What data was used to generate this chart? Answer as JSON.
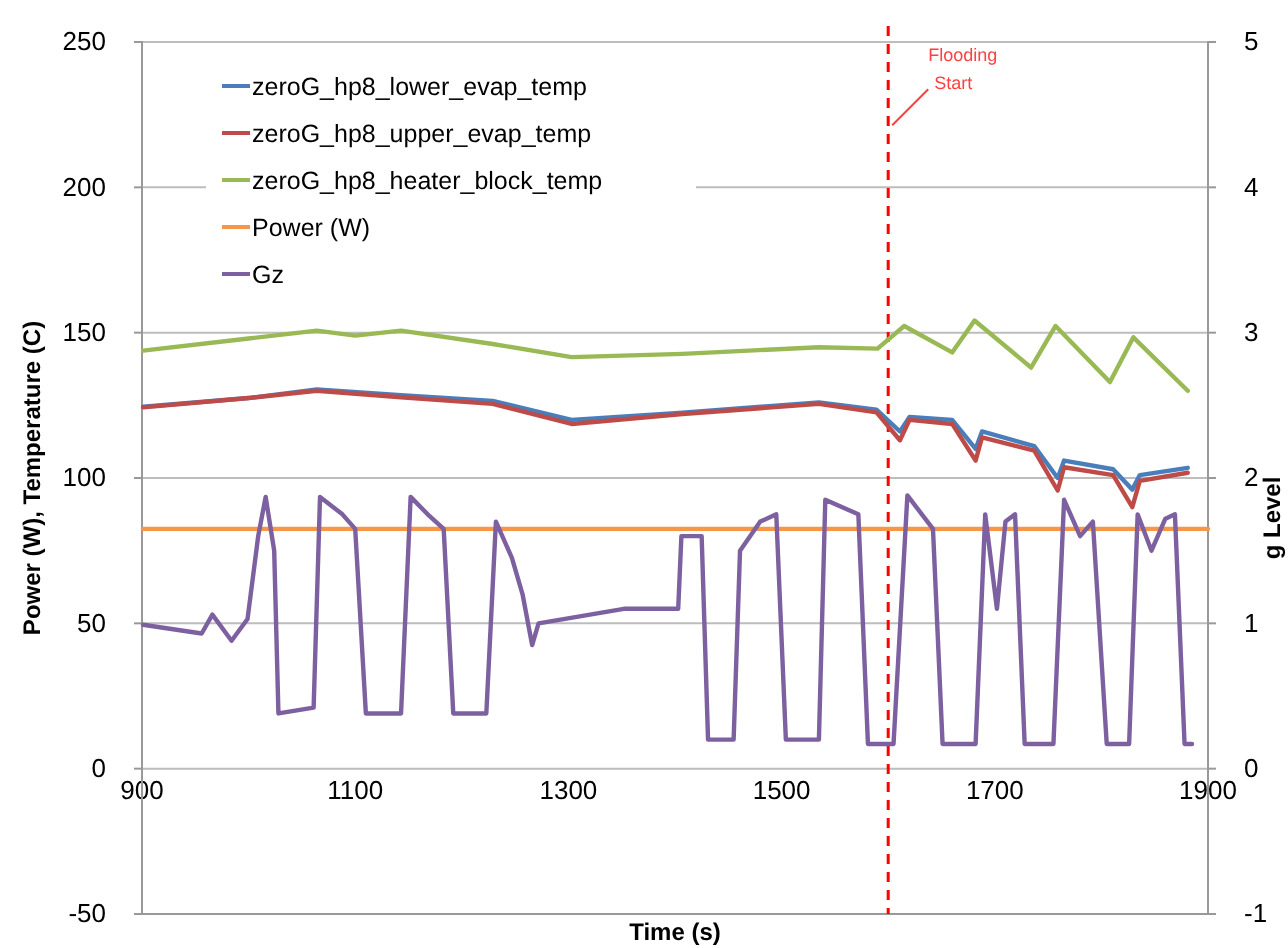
{
  "chart_data": {
    "type": "line",
    "xlabel": "Time (s)",
    "ylabel": "Power (W), Temperature (C)",
    "y2label": "g Level",
    "xlim": [
      900,
      1900
    ],
    "xticks": [
      900,
      1100,
      1300,
      1500,
      1700,
      1900
    ],
    "ylim": [
      -50,
      250
    ],
    "yticks": [
      -50,
      0,
      50,
      100,
      150,
      200,
      250
    ],
    "y2lim": [
      -1,
      5
    ],
    "y2ticks": [
      -1,
      0,
      1,
      2,
      3,
      4,
      5
    ],
    "grid": "y",
    "legend": "top left",
    "line_style": "solid",
    "marker": "none",
    "ref_lines": [
      {
        "axis": "x",
        "value": 1600,
        "color": "#ff0000",
        "line_style": "dashed"
      }
    ],
    "annotations": [
      {
        "text": "Flooding Start",
        "x": 1600,
        "y": 220
      }
    ],
    "series": [
      {
        "name": "zeroG_hp8_lower_evap_temp",
        "color": "#4a7ebb",
        "x": [
          901,
          1000,
          1064,
          1143,
          1229,
          1303,
          1407,
          1535,
          1589,
          1611,
          1620,
          1660,
          1682,
          1688,
          1737,
          1759,
          1765,
          1811,
          1829,
          1836,
          1881
        ],
        "values": [
          124.5,
          127.5,
          130.5,
          128.5,
          126.5,
          120,
          122.5,
          126,
          123.5,
          116,
          121,
          120,
          110,
          116,
          111,
          100,
          106,
          103,
          96,
          101,
          103.5
        ]
      },
      {
        "name": "zeroG_hp8_upper_evap_temp",
        "color": "#be4b48",
        "x": [
          901,
          1000,
          1064,
          1143,
          1229,
          1303,
          1407,
          1535,
          1589,
          1611,
          1620,
          1660,
          1682,
          1688,
          1737,
          1759,
          1765,
          1811,
          1829,
          1836,
          1881
        ],
        "values": [
          124.3,
          127.5,
          130,
          127.8,
          125.5,
          118.6,
          122,
          125.5,
          122.6,
          113,
          120,
          118.6,
          106,
          114,
          109.4,
          95.7,
          103.7,
          101,
          90,
          99,
          101.8
        ]
      },
      {
        "name": "zeroG_hp8_heater_block_temp",
        "color": "#98b954",
        "x": [
          901,
          1000,
          1064,
          1100,
          1143,
          1229,
          1303,
          1407,
          1535,
          1590,
          1615,
          1660,
          1681,
          1734,
          1757,
          1808,
          1830,
          1881
        ],
        "values": [
          143.8,
          148,
          150.7,
          149,
          150.7,
          146.1,
          141.6,
          142.7,
          145,
          144.5,
          152.3,
          143.2,
          154.2,
          138,
          152.3,
          133,
          148.4,
          130
        ]
      },
      {
        "name": "Power (W)",
        "color": "#f79646",
        "x": [
          901,
          1900
        ],
        "values": [
          82.5,
          82.5
        ]
      },
      {
        "name": "Gz",
        "color": "#7d60a0",
        "axis": "y2",
        "x": [
          901,
          956,
          966,
          984,
          999,
          1009,
          1016,
          1024,
          1028,
          1061,
          1067,
          1088,
          1100,
          1110,
          1143,
          1152,
          1168,
          1183,
          1192,
          1223,
          1232,
          1247,
          1257,
          1266,
          1272,
          1352,
          1395,
          1403,
          1406,
          1425,
          1431,
          1455,
          1461,
          1480,
          1495,
          1504,
          1535,
          1541,
          1572,
          1581,
          1605,
          1618,
          1642,
          1651,
          1682,
          1691,
          1702,
          1710,
          1719,
          1728,
          1755,
          1765,
          1780,
          1792,
          1805,
          1826,
          1834,
          1847,
          1860,
          1869,
          1878,
          1885
        ],
        "values": [
          0.99,
          0.93,
          1.06,
          0.88,
          1.03,
          1.6,
          1.87,
          1.5,
          0.38,
          0.42,
          1.87,
          1.75,
          1.65,
          0.38,
          0.38,
          1.87,
          1.75,
          1.65,
          0.38,
          0.38,
          1.7,
          1.45,
          1.2,
          0.85,
          1.0,
          1.1,
          1.1,
          1.1,
          1.6,
          1.6,
          0.2,
          0.2,
          1.5,
          1.7,
          1.75,
          0.2,
          0.2,
          1.85,
          1.75,
          0.17,
          0.17,
          1.88,
          1.65,
          0.17,
          0.17,
          1.75,
          1.1,
          1.7,
          1.75,
          0.17,
          0.17,
          1.85,
          1.6,
          1.7,
          0.17,
          0.17,
          1.75,
          1.5,
          1.72,
          1.75,
          0.17,
          0.17
        ]
      }
    ]
  }
}
